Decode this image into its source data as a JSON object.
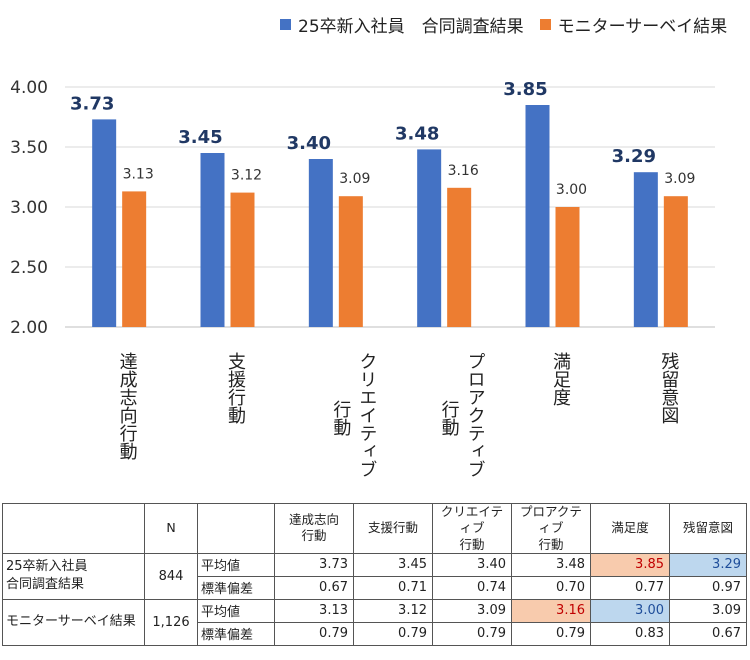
{
  "colors": {
    "series1": "#4472c4",
    "series2": "#ed7d31",
    "label1": "#203864",
    "grid": "#d9d9d9"
  },
  "chart_data": {
    "type": "bar",
    "categories": [
      "達成志向行動",
      "支援行動",
      "クリエイティブ行動",
      "プロアクティブ行動",
      "満足度",
      "残留意図"
    ],
    "category_lines": [
      [
        "達成志向行動"
      ],
      [
        "支援行動"
      ],
      [
        "クリエイティブ",
        "行動"
      ],
      [
        "プロアクティブ",
        "行動"
      ],
      [
        "満足度"
      ],
      [
        "残留意図"
      ]
    ],
    "series": [
      {
        "name": "25卒新入社員　合同調査結果",
        "values": [
          3.73,
          3.45,
          3.4,
          3.48,
          3.85,
          3.29
        ],
        "labels": [
          "3.73",
          "3.45",
          "3.40",
          "3.48",
          "3.85",
          "3.29"
        ]
      },
      {
        "name": "モニターサーベイ結果",
        "values": [
          3.13,
          3.12,
          3.09,
          3.16,
          3.0,
          3.09
        ],
        "labels": [
          "3.13",
          "3.12",
          "3.09",
          "3.16",
          "3.00",
          "3.09"
        ]
      }
    ],
    "yticks": [
      "4.00",
      "3.50",
      "3.00",
      "2.50",
      "2.00"
    ],
    "ylim": [
      2.0,
      4.0
    ],
    "grid": true,
    "legend": "top-right"
  },
  "table": {
    "header_n": "N",
    "columns": [
      "達成志向\n行動",
      "支援行動",
      "クリエイティブ\n行動",
      "プロアクティブ\n行動",
      "満足度",
      "残留意図"
    ],
    "groups": [
      {
        "name": "25卒新入社員\n合同調査結果",
        "n": "844",
        "rows": [
          {
            "label": "平均値",
            "values": [
              "3.73",
              "3.45",
              "3.40",
              "3.48",
              "3.85",
              "3.29"
            ]
          },
          {
            "label": "標準偏差",
            "values": [
              "0.67",
              "0.71",
              "0.74",
              "0.70",
              "0.77",
              "0.97"
            ]
          }
        ]
      },
      {
        "name": "モニターサーベイ結果",
        "n": "1,126",
        "rows": [
          {
            "label": "平均値",
            "values": [
              "3.13",
              "3.12",
              "3.09",
              "3.16",
              "3.00",
              "3.09"
            ]
          },
          {
            "label": "標準偏差",
            "values": [
              "0.79",
              "0.79",
              "0.79",
              "0.79",
              "0.83",
              "0.67"
            ]
          }
        ]
      }
    ]
  }
}
